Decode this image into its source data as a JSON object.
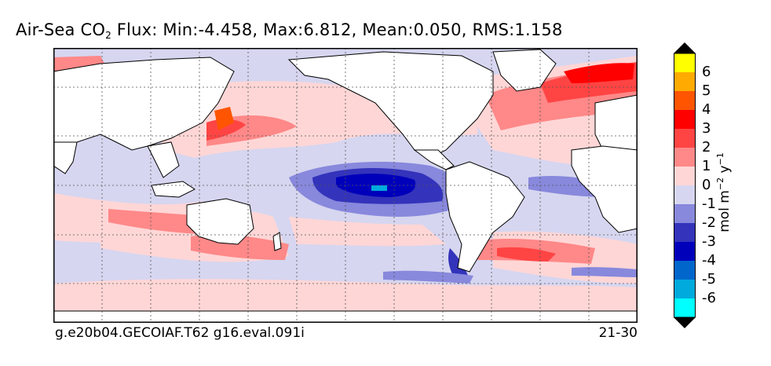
{
  "title": {
    "prefix": "Air-Sea CO",
    "subscript": "2",
    "suffix": " Flux: Min:-4.458, Max:6.812, Mean:0.050, RMS:1.158"
  },
  "footer": {
    "run_name": "g.e20b04.GECOIAF.T62 g16.eval.091i",
    "years": "21-30"
  },
  "colorbar": {
    "unit_text": {
      "base": "mol m",
      "exp1": "−2",
      "mid": " y",
      "exp2": "−1"
    },
    "levels": [
      "6",
      "5",
      "4",
      "3",
      "2",
      "1",
      "0",
      "-1",
      "-2",
      "-3",
      "-4",
      "-5",
      "-6"
    ],
    "colors": [
      "#ffff00",
      "#ffaa00",
      "#ff5500",
      "#ff0000",
      "#ff4444",
      "#ff8888",
      "#ffd6d6",
      "#d6d6f0",
      "#8888dd",
      "#3333bb",
      "#0000bb",
      "#0066cc",
      "#00aadd",
      "#00ffff"
    ],
    "arrow_color": "#000000"
  },
  "palette": {
    "land": "#ffffff",
    "ocean_neutral_pos": "#ffd6d6",
    "ocean_neutral_neg": "#d6d6f0",
    "pos1": "#ff8888",
    "pos2": "#ff4444",
    "pos3": "#ff0000",
    "pos4": "#ff5500",
    "neg1": "#8888dd",
    "neg2": "#3333bb",
    "neg3": "#0000bb",
    "neg4": "#0066cc",
    "neg5": "#00aadd"
  }
}
